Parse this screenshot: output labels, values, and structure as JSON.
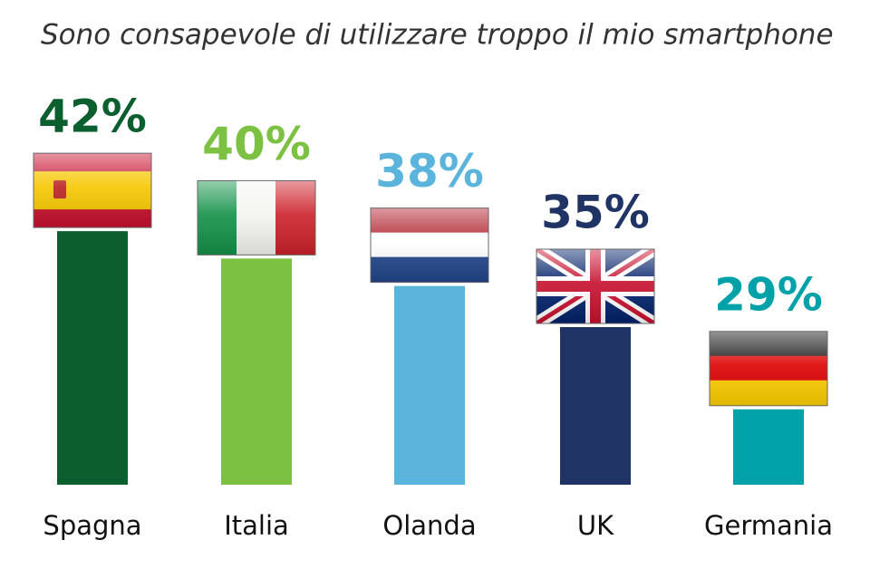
{
  "chart_data": {
    "type": "bar",
    "title": "Sono consapevole di utilizzare troppo il mio smartphone",
    "categories": [
      "Spagna",
      "Italia",
      "Olanda",
      "UK",
      "Germania"
    ],
    "values": [
      42,
      40,
      38,
      35,
      29
    ],
    "value_labels": [
      "42%",
      "40%",
      "38%",
      "35%",
      "29%"
    ],
    "colors": [
      "#0b5e2d",
      "#7cc142",
      "#5ab4db",
      "#1f3465",
      "#00a1a9"
    ],
    "ylim": [
      23.5,
      43
    ]
  }
}
